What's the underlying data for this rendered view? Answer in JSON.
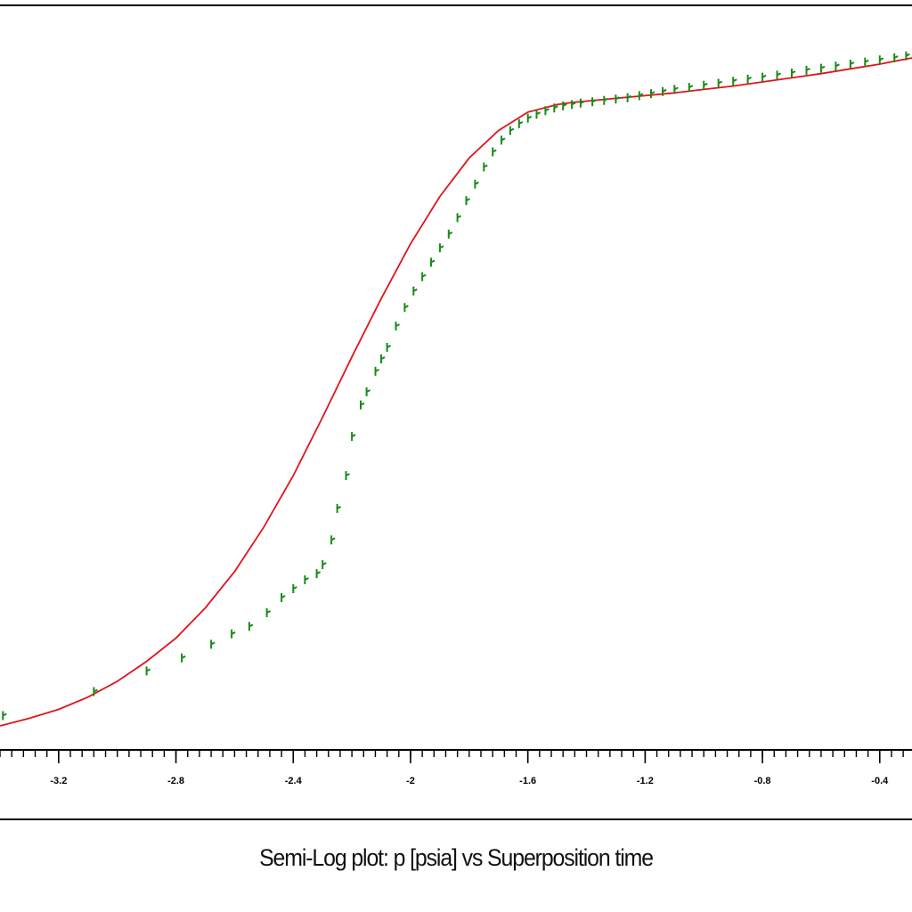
{
  "chart_data": {
    "type": "scatter",
    "title": "Semi-Log plot: p [psia] vs Superposition time",
    "xlabel": "",
    "ylabel": "",
    "x_tick_labels": [
      "-3.2",
      "-2.8",
      "-2.4",
      "-2",
      "-1.6",
      "-1.2",
      "-0.8",
      "-0.4"
    ],
    "x_ticks": [
      -3.2,
      -2.8,
      -2.4,
      -2,
      -1.6,
      -1.2,
      -0.8,
      -0.4
    ],
    "xlim": [
      -3.4,
      -0.29
    ],
    "ylim": [
      0,
      100
    ],
    "grid": false,
    "series": [
      {
        "name": "",
        "kind": "measured",
        "color": "#1a8a1a",
        "marker": "tick",
        "x": [
          -3.39,
          -3.08,
          -2.9,
          -2.78,
          -2.68,
          -2.61,
          -2.55,
          -2.49,
          -2.44,
          -2.4,
          -2.36,
          -2.32,
          -2.3,
          -2.27,
          -2.25,
          -2.22,
          -2.2,
          -2.17,
          -2.15,
          -2.12,
          -2.1,
          -2.08,
          -2.05,
          -2.02,
          -1.99,
          -1.96,
          -1.93,
          -1.9,
          -1.87,
          -1.84,
          -1.81,
          -1.78,
          -1.75,
          -1.72,
          -1.69,
          -1.66,
          -1.63,
          -1.6,
          -1.57,
          -1.54,
          -1.51,
          -1.48,
          -1.45,
          -1.42,
          -1.38,
          -1.34,
          -1.3,
          -1.26,
          -1.22,
          -1.18,
          -1.14,
          -1.1,
          -1.05,
          -1.0,
          -0.95,
          -0.9,
          -0.85,
          -0.8,
          -0.75,
          -0.7,
          -0.65,
          -0.6,
          -0.55,
          -0.5,
          -0.45,
          -0.4,
          -0.35,
          -0.31
        ],
        "y": [
          1.5,
          5.0,
          8.0,
          9.9,
          11.9,
          13.4,
          14.5,
          16.5,
          18.7,
          20.0,
          21.3,
          22.2,
          23.5,
          27.1,
          31.7,
          36.5,
          42.2,
          46.8,
          48.7,
          51.7,
          53.5,
          55.2,
          58.3,
          61.0,
          63.4,
          65.5,
          67.6,
          69.7,
          71.7,
          74.1,
          76.6,
          79.0,
          81.5,
          83.7,
          85.4,
          86.8,
          87.8,
          88.6,
          89.2,
          89.7,
          90.1,
          90.4,
          90.6,
          90.8,
          91.0,
          91.2,
          91.4,
          91.6,
          91.9,
          92.2,
          92.5,
          92.8,
          93.1,
          93.4,
          93.7,
          94.0,
          94.3,
          94.6,
          94.9,
          95.2,
          95.6,
          95.9,
          96.2,
          96.5,
          96.8,
          97.1,
          97.4,
          97.7
        ]
      },
      {
        "name": "",
        "kind": "model",
        "color": "#e0141c",
        "marker": "line",
        "x": [
          -3.4,
          -3.3,
          -3.2,
          -3.1,
          -3.0,
          -2.9,
          -2.8,
          -2.7,
          -2.6,
          -2.5,
          -2.4,
          -2.3,
          -2.2,
          -2.1,
          -2.0,
          -1.9,
          -1.8,
          -1.7,
          -1.6,
          -1.5,
          -1.45,
          -1.4,
          -1.35,
          -1.3,
          -1.2,
          -1.1,
          -1.0,
          -0.9,
          -0.8,
          -0.7,
          -0.6,
          -0.5,
          -0.4,
          -0.29
        ],
        "y": [
          0.0,
          1.1,
          2.4,
          4.2,
          6.5,
          9.4,
          12.8,
          17.2,
          22.5,
          29.0,
          36.5,
          45.0,
          53.8,
          62.3,
          70.3,
          77.2,
          82.8,
          86.8,
          89.5,
          90.6,
          90.9,
          91.1,
          91.3,
          91.5,
          91.9,
          92.3,
          92.8,
          93.3,
          93.9,
          94.5,
          95.1,
          95.8,
          96.5,
          97.4
        ]
      }
    ]
  }
}
